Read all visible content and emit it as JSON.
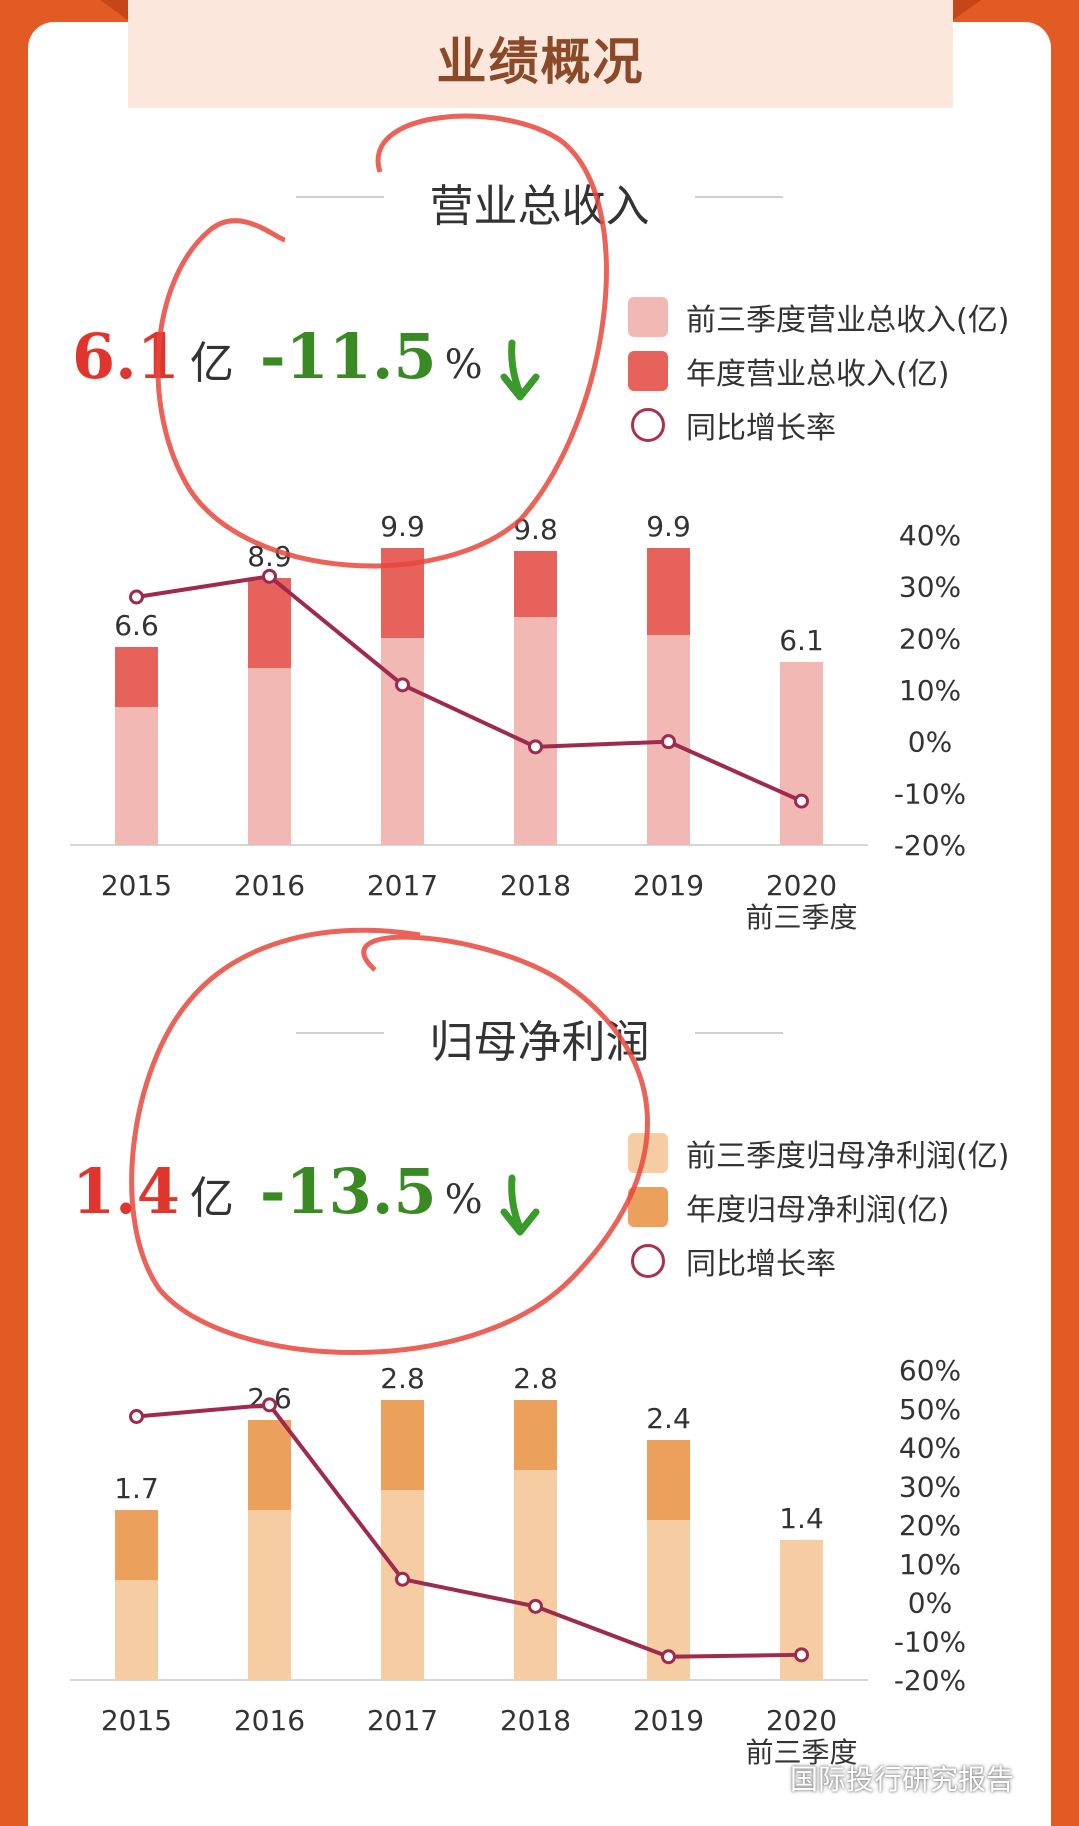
{
  "header": {
    "title": "业绩概况"
  },
  "revenue": {
    "section_title": "营业总收入",
    "kpi_value": "6.1",
    "kpi_unit": "亿",
    "kpi_change": "-11.5",
    "kpi_change_unit": "%",
    "legend": [
      "前三季度营业总收入(亿)",
      "年度营业总收入(亿)",
      "同比增长率"
    ]
  },
  "profit": {
    "section_title": "归母净利润",
    "kpi_value": "1.4",
    "kpi_unit": "亿",
    "kpi_change": "-13.5",
    "kpi_change_unit": "%",
    "legend": [
      "前三季度归母净利润(亿)",
      "年度归母净利润(亿)",
      "同比增长率"
    ]
  },
  "watermark": "国际投行研究报告",
  "chart_data": [
    {
      "type": "bar",
      "categories": [
        "2015",
        "2016",
        "2017",
        "2018",
        "2019",
        "2020\n前三季度"
      ],
      "series": [
        {
          "name": "前三季度营业总收入(亿)",
          "values": [
            4.6,
            5.9,
            6.9,
            7.6,
            7.0,
            6.1
          ],
          "color": "#f2b8b4"
        },
        {
          "name": "年度营业总收入(亿)",
          "values": [
            6.6,
            8.9,
            9.9,
            9.8,
            9.9,
            null
          ],
          "color": "#e8625c"
        },
        {
          "name": "同比增长率",
          "values": [
            28,
            32,
            11,
            -1,
            0,
            -11.5
          ],
          "axis": "right",
          "color": "#9e2a4e"
        }
      ],
      "data_labels": [
        "6.6",
        "8.9",
        "9.9",
        "9.8",
        "9.9",
        "6.1"
      ],
      "ylim": [
        0,
        10
      ],
      "y2lim": [
        -20,
        40
      ],
      "y2_ticks": [
        "40%",
        "30%",
        "20%",
        "10%",
        "0%",
        "-10%",
        "-20%"
      ]
    },
    {
      "type": "bar",
      "categories": [
        "2015",
        "2016",
        "2017",
        "2018",
        "2019",
        "2020\n前三季度"
      ],
      "series": [
        {
          "name": "前三季度归母净利润(亿)",
          "values": [
            1.0,
            1.7,
            1.9,
            2.1,
            1.6,
            1.4
          ],
          "color": "#f6ccA2"
        },
        {
          "name": "年度归母净利润(亿)",
          "values": [
            1.7,
            2.6,
            2.8,
            2.8,
            2.4,
            null
          ],
          "color": "#eba05c"
        },
        {
          "name": "同比增长率",
          "values": [
            48,
            51,
            6,
            -1,
            -14,
            -13.5
          ],
          "axis": "right",
          "color": "#9e2a4e"
        }
      ],
      "data_labels": [
        "1.7",
        "2.6",
        "2.8",
        "2.8",
        "2.4",
        "1.4"
      ],
      "ylim": [
        0,
        3
      ],
      "y2lim": [
        -20,
        60
      ],
      "y2_ticks": [
        "60%",
        "50%",
        "40%",
        "30%",
        "20%",
        "10%",
        "0%",
        "-10%",
        "-20%"
      ]
    }
  ]
}
